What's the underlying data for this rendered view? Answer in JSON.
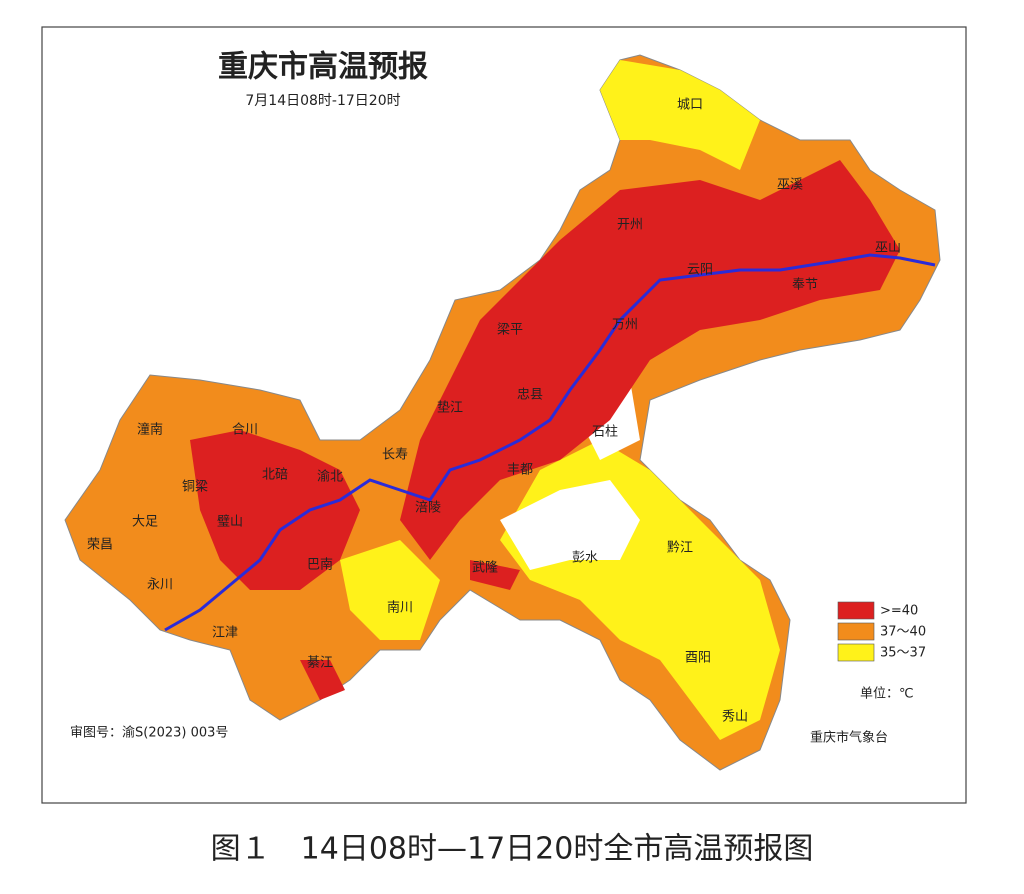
{
  "title": "重庆市高温预报",
  "subtitle": "7月14日08时-17日20时",
  "districts": [
    "城口",
    "巫溪",
    "巫山",
    "开州",
    "云阳",
    "奉节",
    "万州",
    "梁平",
    "忠县",
    "垫江",
    "石柱",
    "长寿",
    "丰都",
    "涪陵",
    "潼南",
    "合川",
    "铜梁",
    "北碚",
    "渝北",
    "大足",
    "璧山",
    "荣昌",
    "永川",
    "江津",
    "巴南",
    "南川",
    "武隆",
    "彭水",
    "黔江",
    "酉阳",
    "秀山",
    "綦江"
  ],
  "legend": [
    {
      "label": ">=40",
      "color": "#dc2020"
    },
    {
      "label": "37～40",
      "color": "#f28c1c"
    },
    {
      "label": "35～37",
      "color": "#fff21a"
    }
  ],
  "unit": "单位：℃",
  "review_number": "审图号：渝S(2023) 003号",
  "issuer": "重庆市气象台",
  "caption": "图１　14日08时—17日20时全市高温预报图"
}
